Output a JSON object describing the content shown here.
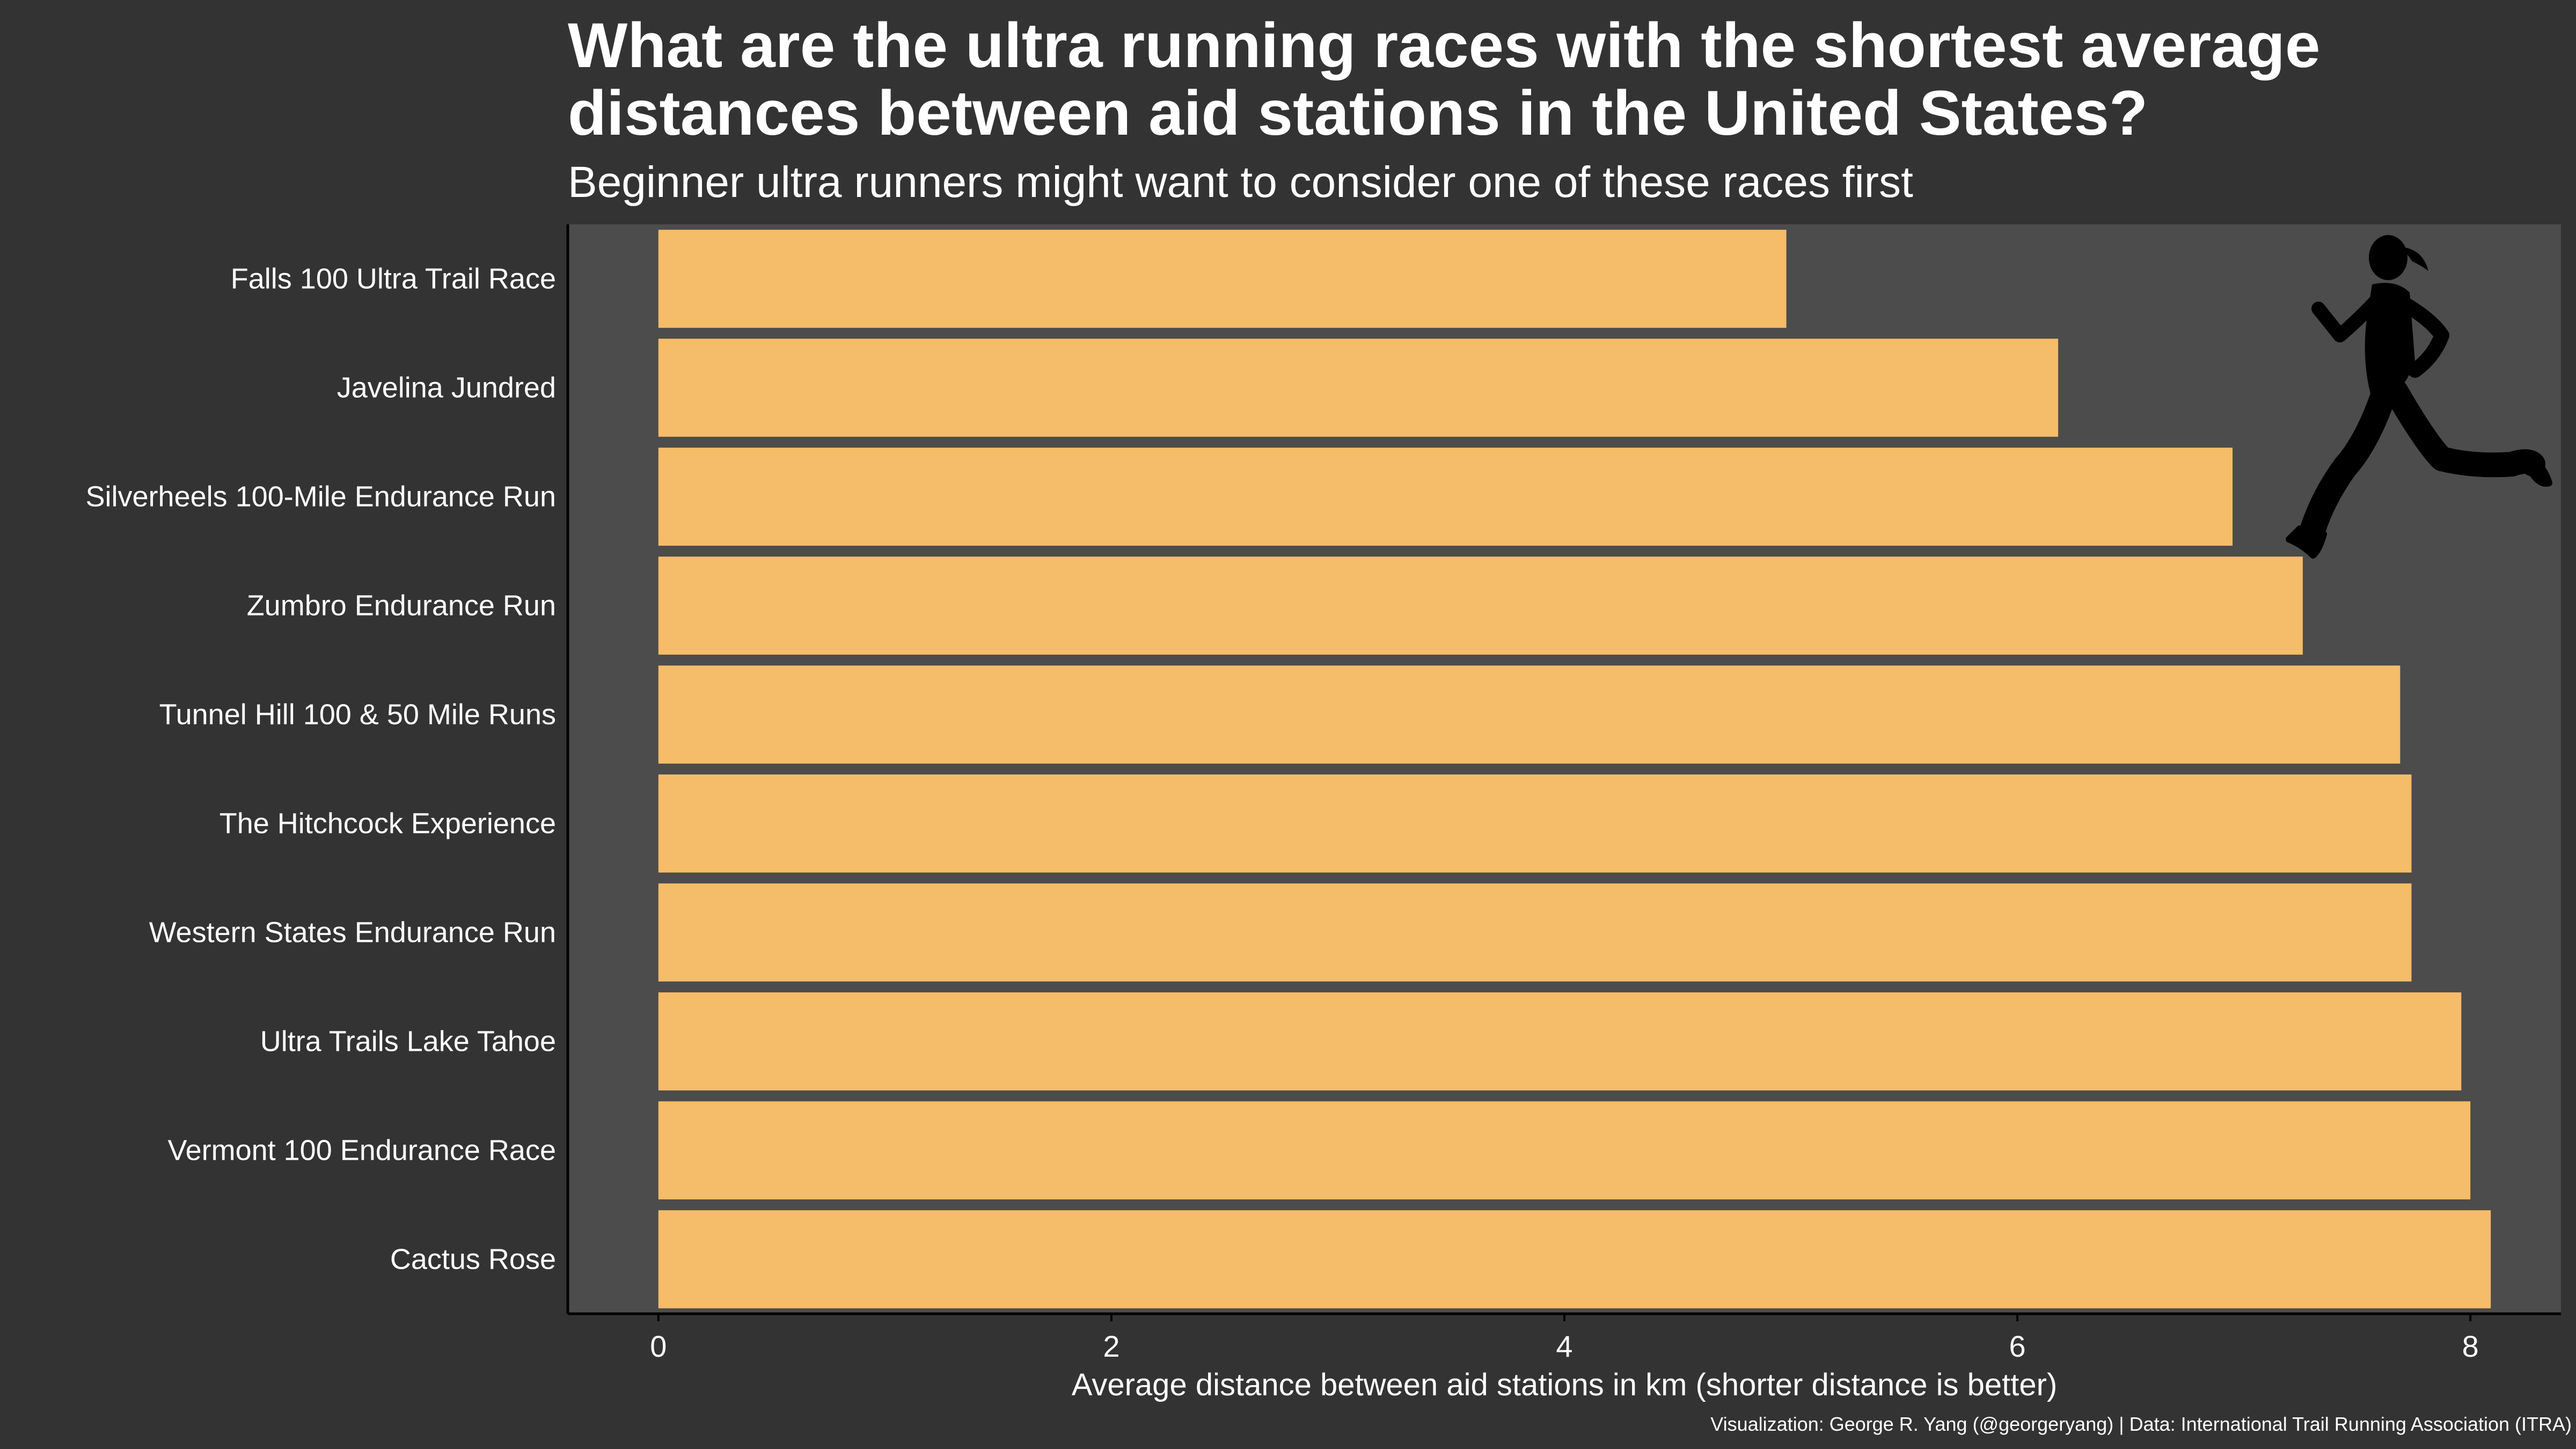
{
  "chart_data": {
    "type": "bar",
    "orientation": "horizontal",
    "title": "What are the ultra running races with the shortest average distances between aid stations in the United States?",
    "subtitle": "Beginner ultra runners might want to consider one of these races first",
    "xlabel": "Average distance between aid stations in km (shorter distance is better)",
    "ylabel": "",
    "categories": [
      "Falls 100 Ultra Trail Race",
      "Javelina Jundred",
      "Silverheels 100-Mile Endurance Run",
      "Zumbro Endurance Run",
      "Tunnel Hill  100 & 50 Mile Runs",
      "The Hitchcock Experience",
      "Western States Endurance Run",
      "Ultra Trails Lake Tahoe",
      "Vermont 100 Endurance Race",
      "Cactus Rose"
    ],
    "values": [
      4.98,
      6.18,
      6.95,
      7.26,
      7.69,
      7.74,
      7.74,
      7.96,
      8.0,
      8.09
    ],
    "xlim": [
      -0.4,
      8.4
    ],
    "xticks": [
      "0",
      "2",
      "4",
      "6",
      "8"
    ],
    "grid": false,
    "legend": "none",
    "credit": "Visualization: George R. Yang (@georgeryang) | Data: International Trail Running Association (ITRA)",
    "colors": {
      "background": "#333333",
      "panel": "#4c4c4c",
      "bar": "#f5bc69",
      "text": "#ffffff",
      "axis": "#000000"
    }
  },
  "decoration": {
    "icon": "running-woman-silhouette-icon"
  }
}
